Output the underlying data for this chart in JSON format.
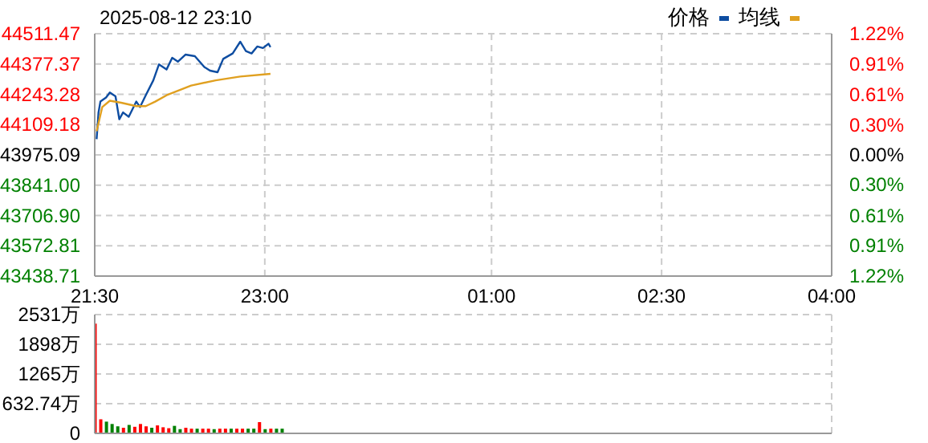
{
  "chart_data": [
    {
      "type": "line",
      "title": "2025-08-12 23:10",
      "legend": "top right",
      "grid": true,
      "xlim": [
        "2025-08-12T21:30",
        "2025-08-13T04:00"
      ],
      "xticks": [
        {
          "value": "2025-08-12T21:30",
          "label": "21:30"
        },
        {
          "value": "2025-08-12T23:00",
          "label": "23:00"
        },
        {
          "value": "2025-08-13T01:00",
          "label": "01:00"
        },
        {
          "value": "2025-08-13T02:30",
          "label": "02:30"
        },
        {
          "value": "2025-08-13T04:00",
          "label": "04:00"
        }
      ],
      "ylim": [
        43438.71,
        44511.47
      ],
      "yticks": [
        43438.71,
        43572.81,
        {
          "value": 43706.9,
          "label": "43706.90"
        },
        {
          "value": 43841,
          "label": "43841.00"
        },
        43975.09,
        44109.18,
        44243.28,
        44377.37,
        44511.47
      ],
      "y2lim": [
        -1.22,
        1.22
      ],
      "y2ticks": [
        {
          "value": -1.22,
          "label": "1.22%"
        },
        {
          "value": -0.91,
          "label": "0.91%"
        },
        {
          "value": -0.61,
          "label": "0.61%"
        },
        {
          "value": -0.3,
          "label": "0.30%"
        },
        {
          "value": 0,
          "label": "0.00%"
        },
        {
          "value": 0.3,
          "label": "0.30%"
        },
        {
          "value": 0.61,
          "label": "0.61%"
        },
        {
          "value": 0.91,
          "label": "0.91%"
        },
        {
          "value": 1.22,
          "label": "1.22%"
        }
      ],
      "series": [
        {
          "name": "价格",
          "color": "#0e4da1",
          "x": [
            "2025-08-12T21:31",
            "2025-08-12T21:32",
            "2025-08-12T21:33",
            "2025-08-12T21:36",
            "2025-08-12T21:38",
            "2025-08-12T21:41",
            "2025-08-12T21:43",
            "2025-08-12T21:45",
            "2025-08-12T21:48",
            "2025-08-12T21:52",
            "2025-08-12T21:54",
            "2025-08-12T21:57",
            "2025-08-12T22:01",
            "2025-08-12T22:04",
            "2025-08-12T22:08",
            "2025-08-12T22:11",
            "2025-08-12T22:14",
            "2025-08-12T22:18",
            "2025-08-12T22:23",
            "2025-08-12T22:28",
            "2025-08-12T22:31",
            "2025-08-12T22:35",
            "2025-08-12T22:38",
            "2025-08-12T22:43",
            "2025-08-12T22:47",
            "2025-08-12T22:50",
            "2025-08-12T22:53",
            "2025-08-12T22:56",
            "2025-08-12T22:59",
            "2025-08-12T23:02",
            "2025-08-12T23:03"
          ],
          "values": [
            44045,
            44163,
            44211,
            44229,
            44251,
            44234,
            44133,
            44163,
            44144,
            44211,
            44187,
            44239,
            44305,
            44376,
            44353,
            44405,
            44388,
            44419,
            44412,
            44364,
            44348,
            44341,
            44400,
            44424,
            44476,
            44435,
            44424,
            44455,
            44448,
            44467,
            44452
          ]
        },
        {
          "name": "均线",
          "color": "#e0a020",
          "x": [
            "2025-08-12T21:31",
            "2025-08-12T21:34",
            "2025-08-12T21:38",
            "2025-08-12T21:44",
            "2025-08-12T21:52",
            "2025-08-12T21:57",
            "2025-08-12T22:02",
            "2025-08-12T22:08",
            "2025-08-12T22:21",
            "2025-08-12T22:34",
            "2025-08-12T22:47",
            "2025-08-12T23:03"
          ],
          "values": [
            44080,
            44187,
            44215,
            44206,
            44191,
            44191,
            44211,
            44239,
            44282,
            44305,
            44322,
            44334
          ]
        }
      ]
    },
    {
      "type": "bar",
      "grid": true,
      "tick_labels": "y",
      "xlim": [
        "2025-08-12T21:30",
        "2025-08-13T04:00"
      ],
      "xticks": [
        {
          "value": "2025-08-12T21:30",
          "label": null
        },
        {
          "value": "2025-08-12T23:00",
          "label": null
        },
        {
          "value": "2025-08-13T01:00",
          "label": null
        },
        {
          "value": "2025-08-13T02:30",
          "label": null
        },
        {
          "value": "2025-08-13T04:00",
          "label": null
        }
      ],
      "ylim": [
        0,
        2531
      ],
      "yticks": [
        0,
        {
          "value": 632.74,
          "label": "632.74万"
        },
        {
          "value": 1265,
          "label": "1265万"
        },
        {
          "value": 1898,
          "label": "1898万"
        },
        {
          "value": 2531,
          "label": "2531万"
        }
      ],
      "x": [
        "2025-08-12T21:30",
        "2025-08-12T21:33",
        "2025-08-12T21:36",
        "2025-08-12T21:39",
        "2025-08-12T21:42",
        "2025-08-12T21:45",
        "2025-08-12T21:48",
        "2025-08-12T21:51",
        "2025-08-12T21:54",
        "2025-08-12T21:57",
        "2025-08-12T22:00",
        "2025-08-12T22:03",
        "2025-08-12T22:06",
        "2025-08-12T22:09",
        "2025-08-12T22:12",
        "2025-08-12T22:15",
        "2025-08-12T22:18",
        "2025-08-12T22:21",
        "2025-08-12T22:24",
        "2025-08-12T22:27",
        "2025-08-12T22:30",
        "2025-08-12T22:33",
        "2025-08-12T22:36",
        "2025-08-12T22:39",
        "2025-08-12T22:42",
        "2025-08-12T22:45",
        "2025-08-12T22:48",
        "2025-08-12T22:51",
        "2025-08-12T22:54",
        "2025-08-12T22:57",
        "2025-08-12T23:00",
        "2025-08-12T23:03",
        "2025-08-12T23:06",
        "2025-08-12T23:09"
      ],
      "values": [
        2340,
        300,
        250,
        200,
        150,
        120,
        180,
        140,
        200,
        150,
        120,
        170,
        130,
        110,
        160,
        90,
        120,
        100,
        100,
        100,
        100,
        90,
        100,
        100,
        100,
        100,
        100,
        100,
        100,
        240,
        90,
        100,
        100,
        100
      ],
      "colors": [
        "#ff0000",
        "#ff0000",
        "#008000",
        "#008000",
        "#008000",
        "#ff0000",
        "#008000",
        "#ff0000",
        "#ff0000",
        "#ff0000",
        "#008000",
        "#ff0000",
        "#ff0000",
        "#ff0000",
        "#008000",
        "#008000",
        "#ff0000",
        "#ff0000",
        "#008000",
        "#ff0000",
        "#ff0000",
        "#008000",
        "#ff0000",
        "#ff0000",
        "#008000",
        "#ff0000",
        "#ff0000",
        "#008000",
        "#008000",
        "#ff0000",
        "#008000",
        "#ff0000",
        "#008000",
        "#008000"
      ]
    }
  ]
}
